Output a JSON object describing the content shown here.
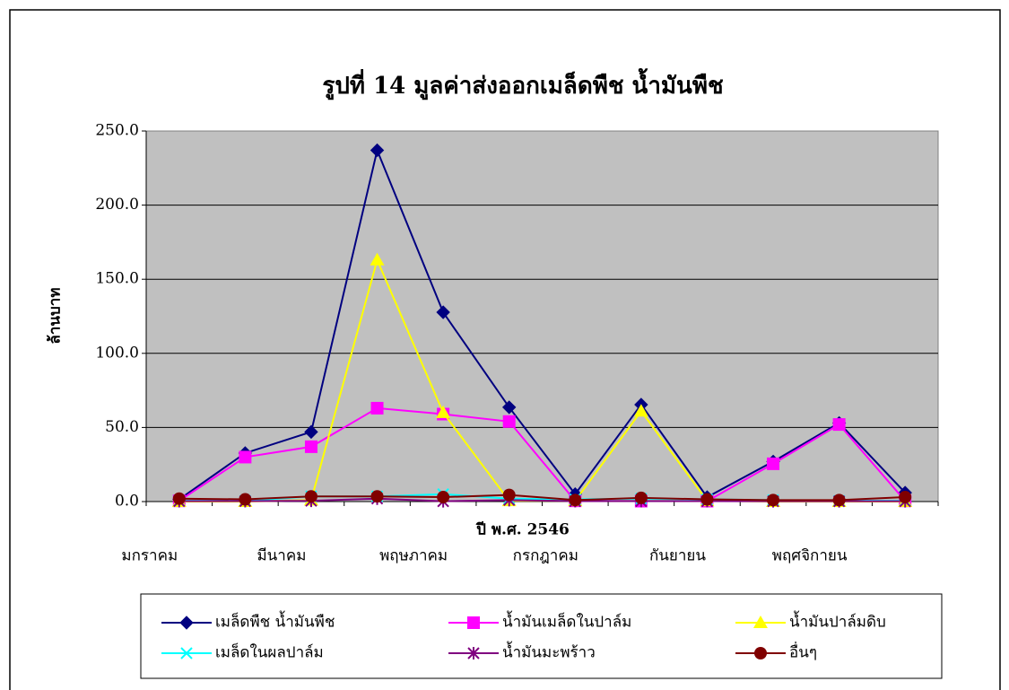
{
  "chart_data": {
    "type": "line",
    "title": "รูปที่  14  มูลค่าส่งออกเมล็ดพืช น้ำมันพืช",
    "x_label": "ปี พ.ศ. 2546",
    "y_label": "ล้านบาท",
    "categories": [
      "มกราคม",
      null,
      "มีนาคม",
      null,
      "พฤษภาคม",
      null,
      "กรกฎาคม",
      null,
      "กันยายน",
      null,
      "พฤศจิกายน",
      null
    ],
    "ylim": [
      0,
      250
    ],
    "yticks": [
      {
        "value": 0,
        "label": "0.0"
      },
      {
        "value": 50,
        "label": "50.0"
      },
      {
        "value": 100,
        "label": "100.0"
      },
      {
        "value": 150,
        "label": "150.0"
      },
      {
        "value": 200,
        "label": "200.0"
      },
      {
        "value": 250,
        "label": "250.0"
      }
    ],
    "grid": true,
    "legend": "bottom",
    "series": [
      {
        "name": "เมล็ดพืช น้ำมันพืช",
        "color": "#000080",
        "marker": "diamond",
        "values": [
          1.5,
          32.7,
          47,
          237,
          127.7,
          63.6,
          5,
          65.4,
          3,
          27,
          53,
          6
        ]
      },
      {
        "name": "น้ำมันเมล็ดในปาล์ม",
        "color": "#ff00ff",
        "marker": "square",
        "values": [
          0.5,
          30,
          37,
          63,
          59,
          54,
          0.5,
          0.3,
          0.3,
          25.5,
          52,
          0.5
        ]
      },
      {
        "name": "น้ำมันปาล์มดิบ",
        "color": "#ffff00",
        "marker": "triangle",
        "values": [
          0,
          0,
          1,
          163,
          60,
          0.5,
          0.5,
          61,
          0.5,
          0,
          0,
          0
        ]
      },
      {
        "name": "เมล็ดในผลปาล์ม",
        "color": "#00ffff",
        "marker": "x",
        "values": [
          0.5,
          0.5,
          3.5,
          3.5,
          5,
          2,
          1.5,
          2,
          1.5,
          1,
          0.5,
          0.5
        ]
      },
      {
        "name": "น้ำมันมะพร้าว",
        "color": "#800080",
        "marker": "star",
        "values": [
          0.3,
          0.3,
          0.5,
          2,
          0.2,
          1,
          0.3,
          0.3,
          0.3,
          0.2,
          0.2,
          0.2
        ]
      },
      {
        "name": "อื่นๆ",
        "color": "#800000",
        "marker": "circle",
        "values": [
          2,
          1.5,
          3.5,
          3.5,
          3,
          4.5,
          1,
          2.5,
          1.5,
          1,
          1,
          3
        ]
      }
    ]
  }
}
